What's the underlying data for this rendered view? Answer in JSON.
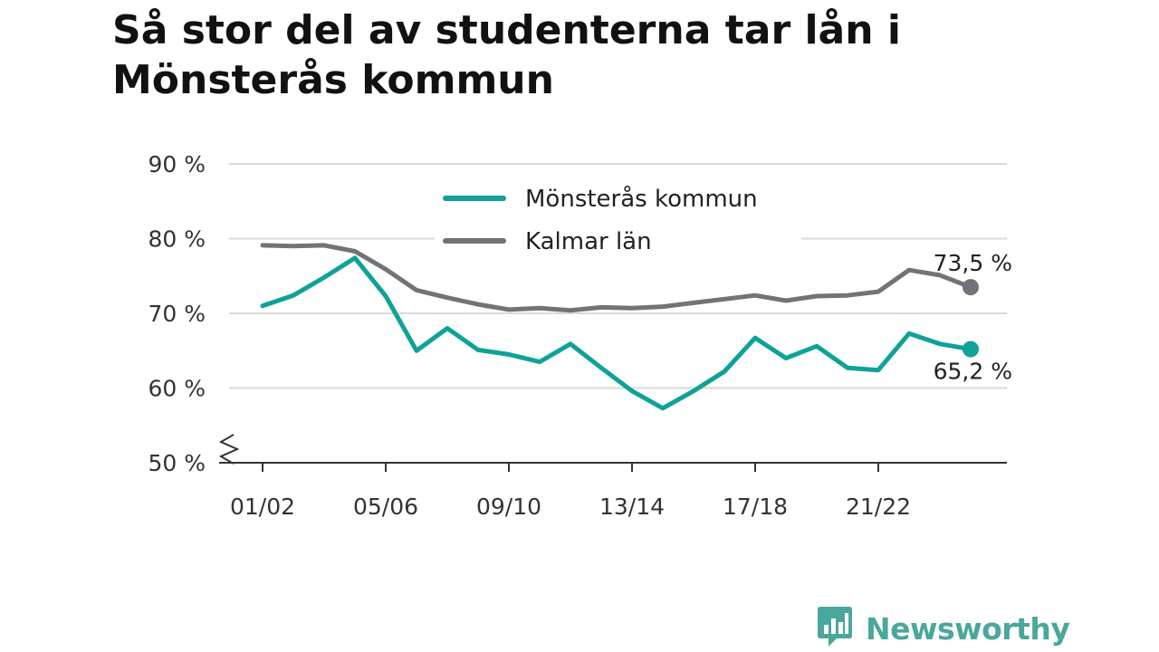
{
  "title": "Så stor del av studenterna tar lån i Mönsterås kommun",
  "brand": {
    "name": "Newsworthy",
    "icon": "newsworthy-logo-icon",
    "color": "#4aa79b"
  },
  "chart_data": {
    "type": "line",
    "title": "Så stor del av studenterna tar lån i Mönsterås kommun",
    "xlabel": "",
    "ylabel": "",
    "x": [
      "01/02",
      "02/03",
      "03/04",
      "04/05",
      "05/06",
      "06/07",
      "07/08",
      "08/09",
      "09/10",
      "10/11",
      "11/12",
      "12/13",
      "13/14",
      "14/15",
      "15/16",
      "16/17",
      "17/18",
      "18/19",
      "19/20",
      "20/21",
      "21/22",
      "22/23",
      "23/24",
      "24/25"
    ],
    "x_tick_labels": [
      "01/02",
      "05/06",
      "09/10",
      "13/14",
      "17/18",
      "21/22"
    ],
    "ylim": [
      50,
      90
    ],
    "y_ticks": [
      50,
      60,
      70,
      80,
      90
    ],
    "y_tick_labels": [
      "50 %",
      "60 %",
      "70 %",
      "80 %",
      "90 %"
    ],
    "y_axis_break": true,
    "grid": true,
    "legend_position": "top-center",
    "series": [
      {
        "name": "Mönsterås kommun",
        "color": "#0fa298",
        "values": [
          71.0,
          72.4,
          74.8,
          77.4,
          72.3,
          65.0,
          68.0,
          65.1,
          64.5,
          63.5,
          65.9,
          62.7,
          59.6,
          57.3,
          59.6,
          62.2,
          66.7,
          64.0,
          65.6,
          62.7,
          62.4,
          67.3,
          65.9,
          65.2
        ],
        "end_label": "65,2 %"
      },
      {
        "name": "Kalmar län",
        "color": "#737278",
        "values": [
          79.1,
          79.0,
          79.1,
          78.3,
          75.9,
          73.1,
          72.1,
          71.2,
          70.5,
          70.7,
          70.4,
          70.8,
          70.7,
          70.9,
          71.4,
          71.9,
          72.4,
          71.7,
          72.3,
          72.4,
          72.9,
          75.8,
          75.1,
          73.5
        ],
        "end_label": "73,5 %"
      }
    ]
  }
}
